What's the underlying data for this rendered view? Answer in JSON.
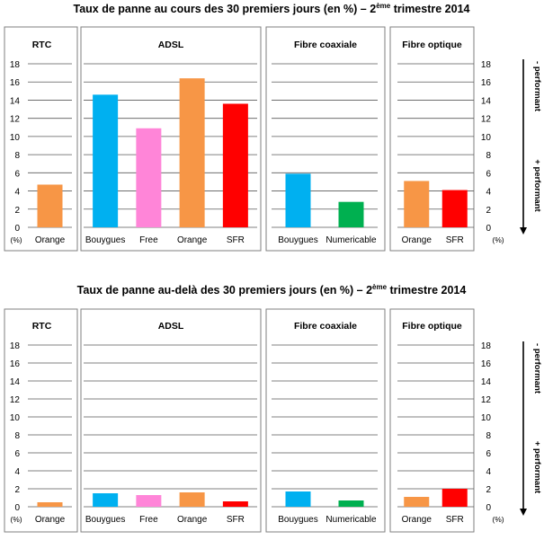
{
  "figure": {
    "right_axis_label_top": "- performant",
    "right_axis_label_bottom": "+ performant",
    "unit_label": "(%)"
  },
  "chart_data": [
    {
      "type": "bar",
      "title": "Taux de panne au cours des 30 premiers jours (en %) – 2ème trimestre 2014",
      "title_parts": [
        "Taux de panne au cours des 30 premiers jours (en %) – 2",
        "ème",
        " trimestre 2014"
      ],
      "ylim": [
        0,
        18
      ],
      "yticks": [
        0,
        2,
        4,
        6,
        8,
        10,
        12,
        14,
        16,
        18
      ],
      "grid": true,
      "groups": [
        {
          "name": "RTC",
          "categories": [
            "Orange"
          ],
          "values": [
            4.7
          ],
          "colors": [
            "#f79646"
          ]
        },
        {
          "name": "ADSL",
          "categories": [
            "Bouygues",
            "Free",
            "Orange",
            "SFR"
          ],
          "values": [
            14.6,
            10.9,
            16.4,
            13.6
          ],
          "colors": [
            "#00b0f0",
            "#ff85d8",
            "#f79646",
            "#ff0000"
          ]
        },
        {
          "name": "Fibre coaxiale",
          "categories": [
            "Bouygues",
            "Numericable"
          ],
          "values": [
            5.9,
            2.8
          ],
          "colors": [
            "#00b0f0",
            "#00b050"
          ]
        },
        {
          "name": "Fibre optique",
          "categories": [
            "Orange",
            "SFR"
          ],
          "values": [
            5.1,
            4.1
          ],
          "colors": [
            "#f79646",
            "#ff0000"
          ]
        }
      ]
    },
    {
      "type": "bar",
      "title": "Taux de panne au-delà des 30 premiers jours (en %) – 2ème trimestre 2014",
      "title_parts": [
        "Taux de panne au-delà des 30 premiers jours (en %) – 2",
        "ème",
        " trimestre 2014"
      ],
      "ylim": [
        0,
        18
      ],
      "yticks": [
        0,
        2,
        4,
        6,
        8,
        10,
        12,
        14,
        16,
        18
      ],
      "grid": true,
      "groups": [
        {
          "name": "RTC",
          "categories": [
            "Orange"
          ],
          "values": [
            0.5
          ],
          "colors": [
            "#f79646"
          ]
        },
        {
          "name": "ADSL",
          "categories": [
            "Bouygues",
            "Free",
            "Orange",
            "SFR"
          ],
          "values": [
            1.5,
            1.3,
            1.6,
            0.6
          ],
          "colors": [
            "#00b0f0",
            "#ff85d8",
            "#f79646",
            "#ff0000"
          ]
        },
        {
          "name": "Fibre coaxiale",
          "categories": [
            "Bouygues",
            "Numericable"
          ],
          "values": [
            1.7,
            0.7
          ],
          "colors": [
            "#00b0f0",
            "#00b050"
          ]
        },
        {
          "name": "Fibre optique",
          "categories": [
            "Orange",
            "SFR"
          ],
          "values": [
            1.1,
            2.0
          ],
          "colors": [
            "#f79646",
            "#ff0000"
          ]
        }
      ]
    }
  ]
}
